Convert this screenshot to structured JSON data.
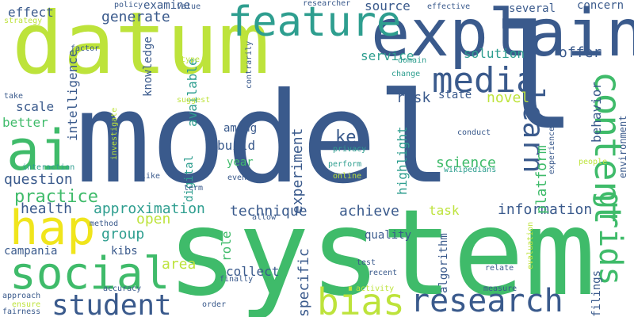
{
  "words": [
    {
      "text": "model",
      "color": "#3a5a8c"
    },
    {
      "text": "system",
      "color": "#3fbb6a"
    },
    {
      "text": "datum",
      "color": "#bde33b"
    },
    {
      "text": "explain",
      "color": "#3a5a8c"
    },
    {
      "text": "feature",
      "color": "#2e9e8f"
    },
    {
      "text": "ai",
      "color": "#3fbb6a"
    },
    {
      "text": "hap",
      "color": "#f0e51c"
    },
    {
      "text": "social",
      "color": "#3fbb6a"
    },
    {
      "text": "student",
      "color": "#3a5a8c"
    },
    {
      "text": "research",
      "color": "#3a5a8c"
    },
    {
      "text": "bias",
      "color": "#bde33b"
    },
    {
      "text": "media",
      "color": "#3a5a8c"
    },
    {
      "text": "content",
      "color": "#3fbb6a"
    },
    {
      "text": "grids",
      "color": "#3fbb6a"
    },
    {
      "text": "learn",
      "color": "#3a5a8c"
    },
    {
      "text": "l",
      "color": "#3a5a8c"
    },
    {
      "text": "generate",
      "color": "#3a5a8c"
    },
    {
      "text": "source",
      "color": "#3a5a8c"
    },
    {
      "text": "service",
      "color": "#2e9e8f"
    },
    {
      "text": "solution",
      "color": "#2e9e8f"
    },
    {
      "text": "offer",
      "color": "#3a5a8c"
    },
    {
      "text": "question",
      "color": "#3a5a8c"
    },
    {
      "text": "practice",
      "color": "#3fbb6a"
    },
    {
      "text": "health",
      "color": "#3a5a8c"
    },
    {
      "text": "approximation",
      "color": "#2e9e8f"
    },
    {
      "text": "technique",
      "color": "#3a5a8c"
    },
    {
      "text": "achieve",
      "color": "#3a5a8c"
    },
    {
      "text": "information",
      "color": "#3a5a8c"
    },
    {
      "text": "group",
      "color": "#2e9e8f"
    },
    {
      "text": "open",
      "color": "#bde33b"
    },
    {
      "text": "campania",
      "color": "#3a5a8c"
    },
    {
      "text": "scale",
      "color": "#3a5a8c"
    },
    {
      "text": "better",
      "color": "#3fbb6a"
    },
    {
      "text": "effect",
      "color": "#3a5a8c"
    },
    {
      "text": "examine",
      "color": "#3a5a8c"
    },
    {
      "text": "several",
      "color": "#3a5a8c"
    },
    {
      "text": "concern",
      "color": "#3a5a8c"
    },
    {
      "text": "risk",
      "color": "#3a5a8c"
    },
    {
      "text": "state",
      "color": "#3a5a8c"
    },
    {
      "text": "novel",
      "color": "#bde33b"
    },
    {
      "text": "key",
      "color": "#3a5a8c"
    },
    {
      "text": "science",
      "color": "#3fbb6a"
    },
    {
      "text": "task",
      "color": "#bde33b"
    },
    {
      "text": "among",
      "color": "#3a5a8c"
    },
    {
      "text": "build",
      "color": "#3a5a8c"
    },
    {
      "text": "year",
      "color": "#3fbb6a"
    },
    {
      "text": "collect",
      "color": "#3a5a8c"
    },
    {
      "text": "area",
      "color": "#bde33b"
    },
    {
      "text": "quality",
      "color": "#3a5a8c"
    },
    {
      "text": "kibs",
      "color": "#3a5a8c"
    },
    {
      "text": "specific",
      "color": "#3a5a8c"
    },
    {
      "text": "experiment",
      "color": "#3a5a8c"
    },
    {
      "text": "highlight",
      "color": "#2e9e8f"
    },
    {
      "text": "platform",
      "color": "#3fbb6a"
    },
    {
      "text": "behavior",
      "color": "#3a5a8c"
    },
    {
      "text": "environment",
      "color": "#3a5a8c"
    },
    {
      "text": "knowledge",
      "color": "#3a5a8c"
    },
    {
      "text": "available",
      "color": "#2e9e8f"
    },
    {
      "text": "intelligence",
      "color": "#3a5a8c"
    },
    {
      "text": "digital",
      "color": "#2e9e8f"
    },
    {
      "text": "role",
      "color": "#3fbb6a"
    },
    {
      "text": "algorithm",
      "color": "#3a5a8c"
    },
    {
      "text": "filings",
      "color": "#3a5a8c"
    },
    {
      "text": "strategy",
      "color": "#bde33b"
    },
    {
      "text": "policy",
      "color": "#3a5a8c"
    },
    {
      "text": "value",
      "color": "#3a5a8c"
    },
    {
      "text": "researcher",
      "color": "#3a5a8c"
    },
    {
      "text": "effective",
      "color": "#3a5a8c"
    },
    {
      "text": "factor",
      "color": "#3a5a8c"
    },
    {
      "text": "type",
      "color": "#bde33b"
    },
    {
      "text": "contrarily",
      "color": "#3a5a8c"
    },
    {
      "text": "domain",
      "color": "#2e9e8f"
    },
    {
      "text": "change",
      "color": "#2e9e8f"
    },
    {
      "text": "take",
      "color": "#3a5a8c"
    },
    {
      "text": "suggest",
      "color": "#bde33b"
    },
    {
      "text": "conduct",
      "color": "#3a5a8c"
    },
    {
      "text": "investigate",
      "color": "#bde33b"
    },
    {
      "text": "privacy",
      "color": "#2e9e8f"
    },
    {
      "text": "perform",
      "color": "#2e9e8f"
    },
    {
      "text": "online",
      "color": "#bde33b"
    },
    {
      "text": "wikipedians",
      "color": "#2e9e8f"
    },
    {
      "text": "experience",
      "color": "#3a5a8c"
    },
    {
      "text": "people",
      "color": "#bde33b"
    },
    {
      "text": "interaction",
      "color": "#2e9e8f"
    },
    {
      "text": "like",
      "color": "#3a5a8c"
    },
    {
      "text": "term",
      "color": "#3a5a8c"
    },
    {
      "text": "even",
      "color": "#3a5a8c"
    },
    {
      "text": "method",
      "color": "#3a5a8c"
    },
    {
      "text": "allow",
      "color": "#3a5a8c"
    },
    {
      "text": "test",
      "color": "#3a5a8c"
    },
    {
      "text": "recent",
      "color": "#3a5a8c"
    },
    {
      "text": "relate",
      "color": "#3a5a8c"
    },
    {
      "text": "evaluation",
      "color": "#bde33b"
    },
    {
      "text": "finally",
      "color": "#3a5a8c"
    },
    {
      "text": "approach",
      "color": "#3a5a8c"
    },
    {
      "text": "accuracy",
      "color": "#3a5a8c"
    },
    {
      "text": "activity",
      "color": "#bde33b"
    },
    {
      "text": "measure",
      "color": "#3a5a8c"
    },
    {
      "text": "ensure",
      "color": "#bde33b"
    },
    {
      "text": "order",
      "color": "#3a5a8c"
    },
    {
      "text": "fairness",
      "color": "#3a5a8c"
    }
  ]
}
